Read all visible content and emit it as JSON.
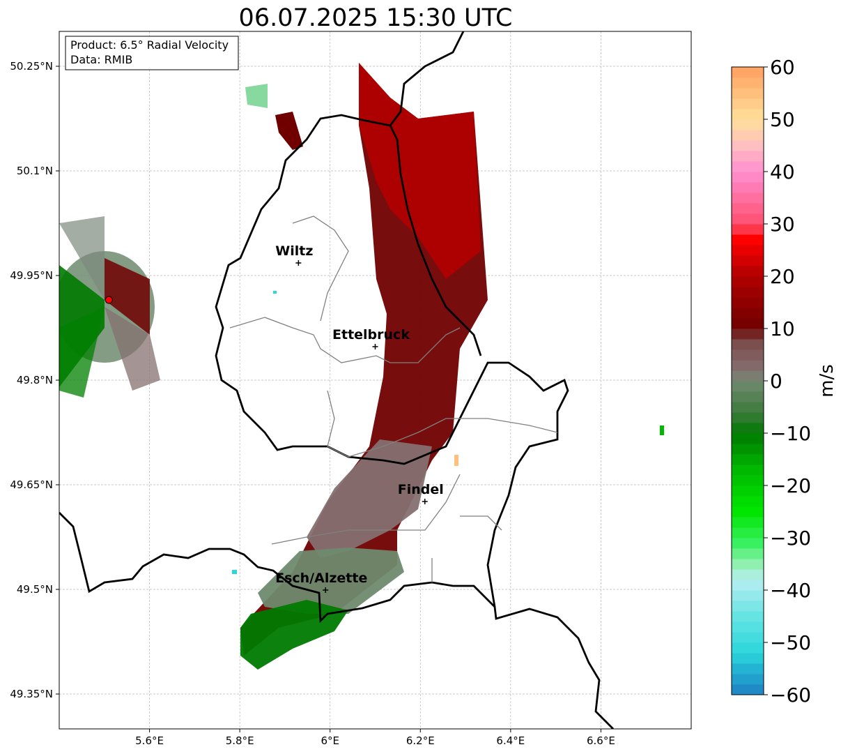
{
  "title": "06.07.2025 15:30 UTC",
  "info": {
    "product": "Product: 6.5° Radial Velocity",
    "data": "Data: RMIB"
  },
  "map": {
    "lon_range": [
      5.4,
      6.8
    ],
    "lat_range": [
      49.3,
      50.3
    ],
    "x_ticks": [
      {
        "value": 5.6,
        "label": "5.6°E"
      },
      {
        "value": 5.8,
        "label": "5.8°E"
      },
      {
        "value": 6.0,
        "label": "6°E"
      },
      {
        "value": 6.2,
        "label": "6.2°E"
      },
      {
        "value": 6.4,
        "label": "6.4°E"
      },
      {
        "value": 6.6,
        "label": "6.6°E"
      }
    ],
    "y_ticks": [
      {
        "value": 49.35,
        "label": "49.35°N"
      },
      {
        "value": 49.5,
        "label": "49.5°N"
      },
      {
        "value": 49.65,
        "label": "49.65°N"
      },
      {
        "value": 49.8,
        "label": "49.8°N"
      },
      {
        "value": 49.95,
        "label": "49.95°N"
      },
      {
        "value": 50.1,
        "label": "50.1°N"
      },
      {
        "value": 50.25,
        "label": "50.25°N"
      }
    ],
    "grid": true,
    "cities": [
      {
        "name": "Wiltz",
        "lon": 5.93,
        "lat": 49.968
      },
      {
        "name": "Ettelbruck",
        "lon": 6.1,
        "lat": 49.848
      },
      {
        "name": "Findel",
        "lon": 6.21,
        "lat": 49.626
      },
      {
        "name": "Esch/Alzette",
        "lon": 5.99,
        "lat": 49.499
      }
    ],
    "radar_site": {
      "lon": 5.51,
      "lat": 49.915,
      "color": "#ff0000"
    }
  },
  "colorbar": {
    "label": "m/s",
    "min": -60,
    "max": 60,
    "ticks": [
      {
        "value": 60,
        "label": "60"
      },
      {
        "value": 50,
        "label": "50"
      },
      {
        "value": 40,
        "label": "40"
      },
      {
        "value": 30,
        "label": "30"
      },
      {
        "value": 20,
        "label": "20"
      },
      {
        "value": 10,
        "label": "10"
      },
      {
        "value": 0,
        "label": "0"
      },
      {
        "value": -10,
        "label": "−10"
      },
      {
        "value": -20,
        "label": "−20"
      },
      {
        "value": -30,
        "label": "−30"
      },
      {
        "value": -40,
        "label": "−40"
      },
      {
        "value": -50,
        "label": "−50"
      },
      {
        "value": -60,
        "label": "−60"
      }
    ],
    "stops": [
      {
        "v": -60,
        "c": "#1f7fc4"
      },
      {
        "v": -56,
        "c": "#22a9d0"
      },
      {
        "v": -52,
        "c": "#2bd6dc"
      },
      {
        "v": -45,
        "c": "#66e4e4"
      },
      {
        "v": -38,
        "c": "#b6eef0"
      },
      {
        "v": -35,
        "c": "#90f0b0"
      },
      {
        "v": -31,
        "c": "#39f060"
      },
      {
        "v": -25,
        "c": "#00e600"
      },
      {
        "v": -17,
        "c": "#00b800"
      },
      {
        "v": -10,
        "c": "#007a00"
      },
      {
        "v": -6,
        "c": "#3d7a3d"
      },
      {
        "v": 0,
        "c": "#6f8a6f"
      },
      {
        "v": 2,
        "c": "#857070"
      },
      {
        "v": 8,
        "c": "#7a4848"
      },
      {
        "v": 10,
        "c": "#700000"
      },
      {
        "v": 20,
        "c": "#b00000"
      },
      {
        "v": 27,
        "c": "#ff0000"
      },
      {
        "v": 30,
        "c": "#ff4f6e"
      },
      {
        "v": 40,
        "c": "#ff8ed0"
      },
      {
        "v": 45,
        "c": "#ffbfc0"
      },
      {
        "v": 50,
        "c": "#ffe09a"
      },
      {
        "v": 60,
        "c": "#ffa060"
      }
    ]
  }
}
